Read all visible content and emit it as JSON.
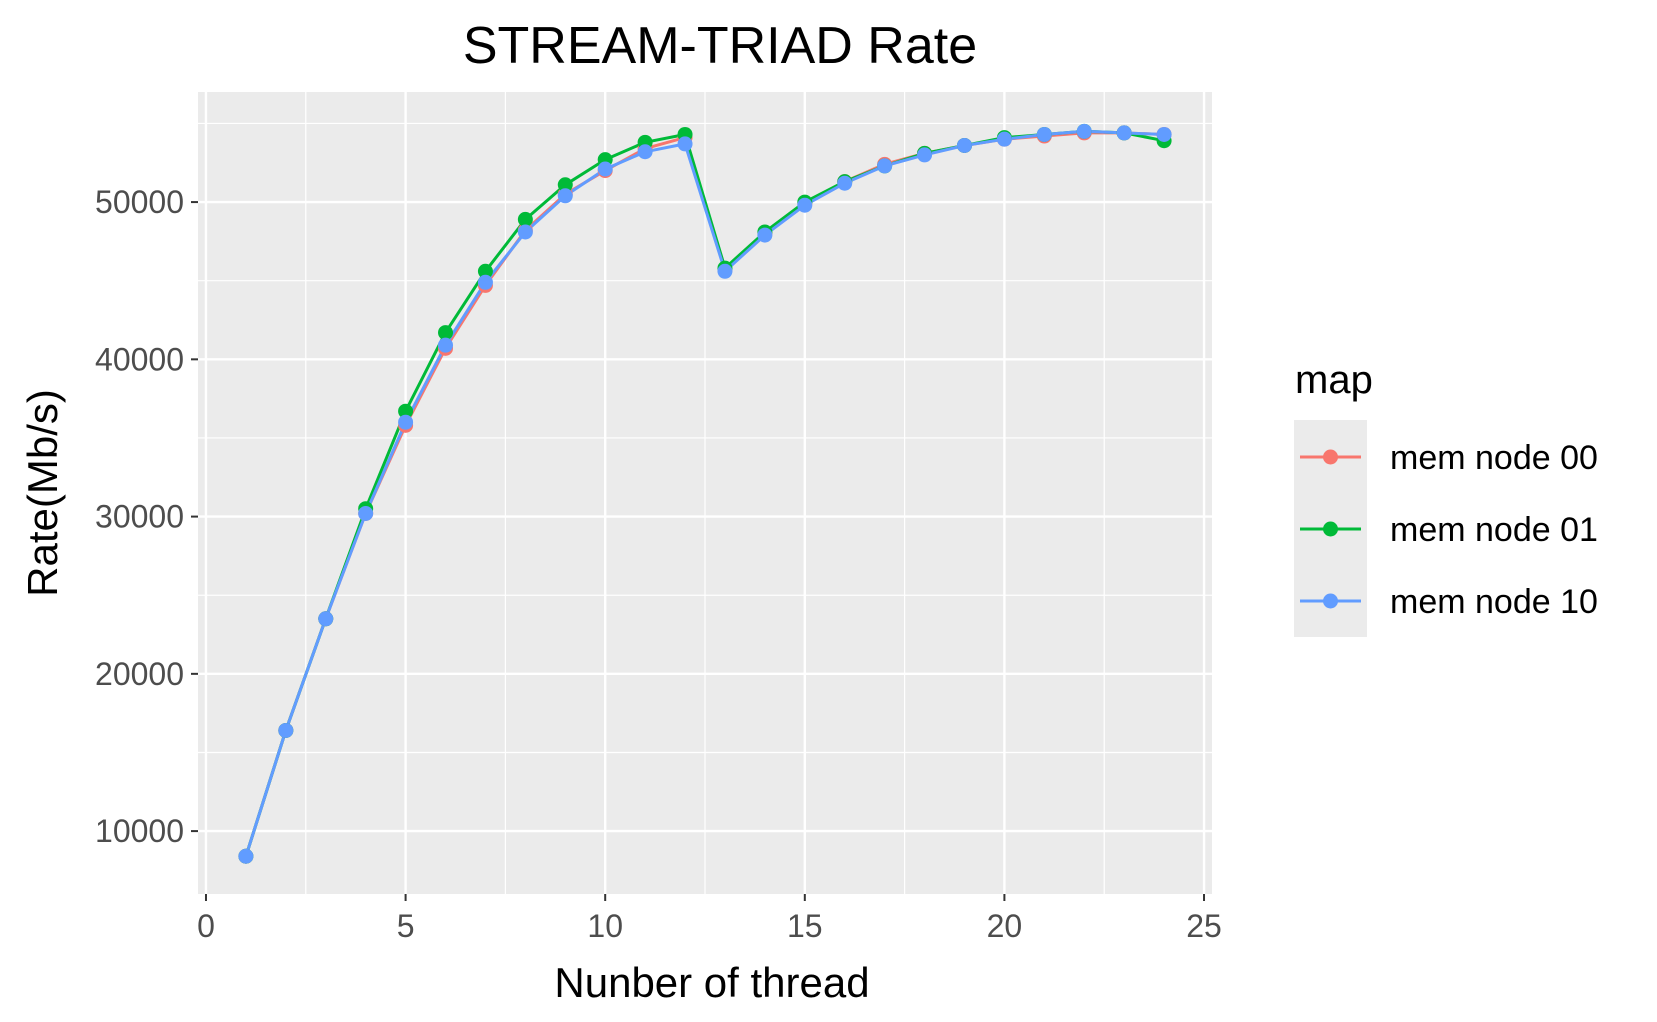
{
  "chart_data": {
    "type": "line",
    "title": "STREAM-TRIAD Rate",
    "xlabel": "Nunber of thread",
    "ylabel": "Rate(Mb/s)",
    "xlim": [
      -0.2,
      25.2
    ],
    "ylim": [
      6000,
      57000
    ],
    "x_ticks": [
      0,
      5,
      10,
      15,
      20,
      25
    ],
    "y_ticks": [
      10000,
      20000,
      30000,
      40000,
      50000
    ],
    "x_tick_labels": [
      "0",
      "5",
      "10",
      "15",
      "20",
      "25"
    ],
    "y_tick_labels": [
      "10000",
      "20000",
      "30000",
      "40000",
      "50000"
    ],
    "grid": true,
    "panel_background": "#ebebeb",
    "legend": {
      "title": "map",
      "position": "right"
    },
    "x": [
      1,
      2,
      3,
      4,
      5,
      6,
      7,
      8,
      9,
      10,
      11,
      12,
      13,
      14,
      15,
      16,
      17,
      18,
      19,
      20,
      21,
      22,
      23,
      24
    ],
    "series": [
      {
        "name": "mem node 00",
        "color": "#F8766D",
        "values": [
          8400,
          16400,
          23500,
          30200,
          35800,
          40700,
          44700,
          48200,
          50500,
          52000,
          53400,
          54100,
          45700,
          48000,
          49900,
          51300,
          52400,
          53100,
          53600,
          54000,
          54200,
          54400,
          54400,
          54300
        ]
      },
      {
        "name": "mem node 01",
        "color": "#00BA38",
        "values": [
          8400,
          16400,
          23500,
          30500,
          36700,
          41700,
          45600,
          48900,
          51100,
          52700,
          53800,
          54300,
          45800,
          48100,
          50000,
          51300,
          52300,
          53100,
          53600,
          54100,
          54300,
          54500,
          54400,
          53900
        ]
      },
      {
        "name": "mem node 10",
        "color": "#619CFF",
        "values": [
          8400,
          16400,
          23500,
          30200,
          36000,
          40900,
          44900,
          48100,
          50400,
          52100,
          53200,
          53700,
          45600,
          47900,
          49800,
          51200,
          52300,
          53000,
          53600,
          54000,
          54300,
          54500,
          54400,
          54300
        ]
      }
    ]
  }
}
